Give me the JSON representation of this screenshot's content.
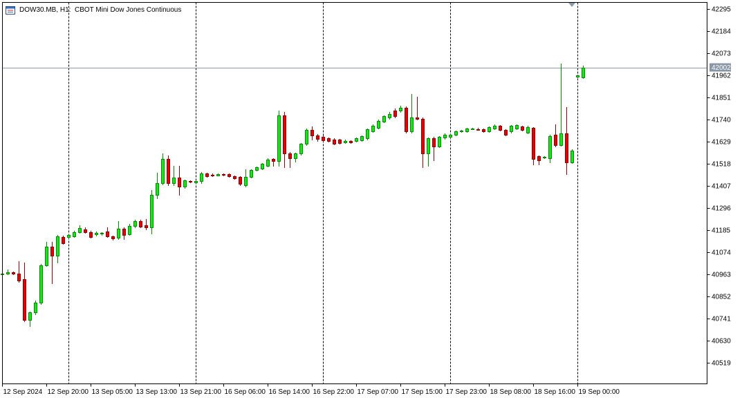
{
  "chart_data": {
    "type": "candlestick",
    "title": "DOW30.MB, H1:  CBOT Mini Dow Jones Continuous",
    "ylim": [
      40415,
      42330
    ],
    "grid": false,
    "legend": "none",
    "y_ticks": [
      42295,
      42184,
      42073,
      41962,
      41851,
      41740,
      41629,
      41518,
      41407,
      41296,
      41185,
      41074,
      40963,
      40852,
      40741,
      40630,
      40519
    ],
    "x_ticks": [
      {
        "label": "12 Sep 2024",
        "bar": 0
      },
      {
        "label": "12 Sep 20:00",
        "bar": 8
      },
      {
        "label": "13 Sep 05:00",
        "bar": 16
      },
      {
        "label": "13 Sep 13:00",
        "bar": 24
      },
      {
        "label": "13 Sep 21:00",
        "bar": 32
      },
      {
        "label": "16 Sep 06:00",
        "bar": 40
      },
      {
        "label": "16 Sep 14:00",
        "bar": 48
      },
      {
        "label": "16 Sep 22:00",
        "bar": 56
      },
      {
        "label": "17 Sep 07:00",
        "bar": 64
      },
      {
        "label": "17 Sep 15:00",
        "bar": 72
      },
      {
        "label": "17 Sep 23:00",
        "bar": 80
      },
      {
        "label": "18 Sep 08:00",
        "bar": 88
      },
      {
        "label": "18 Sep 16:00",
        "bar": 96
      },
      {
        "label": "19 Sep 00:00",
        "bar": 104
      }
    ],
    "day_separators_at_bar": [
      12,
      35,
      58,
      81,
      104
    ],
    "current_price": 42002,
    "candles": [
      {
        "o": 40963,
        "h": 40970,
        "l": 40959,
        "c": 40966
      },
      {
        "o": 40966,
        "h": 40987,
        "l": 40962,
        "c": 40973
      },
      {
        "o": 40973,
        "h": 40977,
        "l": 40962,
        "c": 40966
      },
      {
        "o": 40966,
        "h": 41029,
        "l": 40925,
        "c": 40932
      },
      {
        "o": 40939,
        "h": 41022,
        "l": 40727,
        "c": 40735
      },
      {
        "o": 40735,
        "h": 40776,
        "l": 40703,
        "c": 40772
      },
      {
        "o": 40772,
        "h": 40830,
        "l": 40762,
        "c": 40821
      },
      {
        "o": 40821,
        "h": 41015,
        "l": 40815,
        "c": 41008
      },
      {
        "o": 41008,
        "h": 41126,
        "l": 41004,
        "c": 41102
      },
      {
        "o": 41102,
        "h": 41126,
        "l": 40918,
        "c": 41057
      },
      {
        "o": 41057,
        "h": 41160,
        "l": 41022,
        "c": 41154
      },
      {
        "o": 41150,
        "h": 41157,
        "l": 41115,
        "c": 41119
      },
      {
        "o": 41150,
        "h": 41164,
        "l": 41145,
        "c": 41160
      },
      {
        "o": 41154,
        "h": 41182,
        "l": 41150,
        "c": 41175
      },
      {
        "o": 41175,
        "h": 41209,
        "l": 41172,
        "c": 41195
      },
      {
        "o": 41190,
        "h": 41198,
        "l": 41172,
        "c": 41176
      },
      {
        "o": 41176,
        "h": 41180,
        "l": 41146,
        "c": 41150
      },
      {
        "o": 41163,
        "h": 41178,
        "l": 41158,
        "c": 41171
      },
      {
        "o": 41168,
        "h": 41174,
        "l": 41162,
        "c": 41170
      },
      {
        "o": 41178,
        "h": 41200,
        "l": 41150,
        "c": 41154
      },
      {
        "o": 41154,
        "h": 41158,
        "l": 41136,
        "c": 41143
      },
      {
        "o": 41146,
        "h": 41230,
        "l": 41140,
        "c": 41192
      },
      {
        "o": 41192,
        "h": 41198,
        "l": 41140,
        "c": 41160
      },
      {
        "o": 41164,
        "h": 41216,
        "l": 41160,
        "c": 41206
      },
      {
        "o": 41206,
        "h": 41237,
        "l": 41200,
        "c": 41230
      },
      {
        "o": 41230,
        "h": 41236,
        "l": 41200,
        "c": 41204
      },
      {
        "o": 41210,
        "h": 41240,
        "l": 41188,
        "c": 41198
      },
      {
        "o": 41198,
        "h": 41386,
        "l": 41168,
        "c": 41362
      },
      {
        "o": 41362,
        "h": 41473,
        "l": 41345,
        "c": 41421
      },
      {
        "o": 41421,
        "h": 41570,
        "l": 41415,
        "c": 41542
      },
      {
        "o": 41542,
        "h": 41560,
        "l": 41410,
        "c": 41421
      },
      {
        "o": 41421,
        "h": 41507,
        "l": 41412,
        "c": 41450
      },
      {
        "o": 41450,
        "h": 41507,
        "l": 41362,
        "c": 41404
      },
      {
        "o": 41404,
        "h": 41440,
        "l": 41398,
        "c": 41435
      },
      {
        "o": 41430,
        "h": 41434,
        "l": 41424,
        "c": 41428
      },
      {
        "o": 41426,
        "h": 41432,
        "l": 41420,
        "c": 41430
      },
      {
        "o": 41430,
        "h": 41475,
        "l": 41422,
        "c": 41469
      },
      {
        "o": 41469,
        "h": 41473,
        "l": 41452,
        "c": 41456
      },
      {
        "o": 41464,
        "h": 41468,
        "l": 41456,
        "c": 41459
      },
      {
        "o": 41460,
        "h": 41468,
        "l": 41458,
        "c": 41466
      },
      {
        "o": 41466,
        "h": 41469,
        "l": 41459,
        "c": 41462
      },
      {
        "o": 41466,
        "h": 41469,
        "l": 41452,
        "c": 41456
      },
      {
        "o": 41456,
        "h": 41460,
        "l": 41442,
        "c": 41445
      },
      {
        "o": 41452,
        "h": 41455,
        "l": 41412,
        "c": 41418
      },
      {
        "o": 41412,
        "h": 41490,
        "l": 41405,
        "c": 41452
      },
      {
        "o": 41452,
        "h": 41490,
        "l": 41448,
        "c": 41487
      },
      {
        "o": 41487,
        "h": 41504,
        "l": 41484,
        "c": 41500
      },
      {
        "o": 41495,
        "h": 41522,
        "l": 41490,
        "c": 41518
      },
      {
        "o": 41508,
        "h": 41545,
        "l": 41505,
        "c": 41539
      },
      {
        "o": 41542,
        "h": 41546,
        "l": 41508,
        "c": 41532
      },
      {
        "o": 41532,
        "h": 41785,
        "l": 41508,
        "c": 41761
      },
      {
        "o": 41761,
        "h": 41778,
        "l": 41501,
        "c": 41570
      },
      {
        "o": 41570,
        "h": 41576,
        "l": 41500,
        "c": 41545
      },
      {
        "o": 41545,
        "h": 41575,
        "l": 41530,
        "c": 41570
      },
      {
        "o": 41570,
        "h": 41622,
        "l": 41565,
        "c": 41618
      },
      {
        "o": 41618,
        "h": 41695,
        "l": 41612,
        "c": 41688
      },
      {
        "o": 41688,
        "h": 41705,
        "l": 41640,
        "c": 41660
      },
      {
        "o": 41660,
        "h": 41666,
        "l": 41632,
        "c": 41642
      },
      {
        "o": 41655,
        "h": 41662,
        "l": 41630,
        "c": 41636
      },
      {
        "o": 41646,
        "h": 41650,
        "l": 41628,
        "c": 41632
      },
      {
        "o": 41640,
        "h": 41645,
        "l": 41616,
        "c": 41620
      },
      {
        "o": 41638,
        "h": 41642,
        "l": 41618,
        "c": 41622
      },
      {
        "o": 41626,
        "h": 41638,
        "l": 41622,
        "c": 41634
      },
      {
        "o": 41633,
        "h": 41637,
        "l": 41624,
        "c": 41627
      },
      {
        "o": 41632,
        "h": 41650,
        "l": 41628,
        "c": 41646
      },
      {
        "o": 41636,
        "h": 41660,
        "l": 41632,
        "c": 41656
      },
      {
        "o": 41646,
        "h": 41695,
        "l": 41640,
        "c": 41690
      },
      {
        "o": 41681,
        "h": 41715,
        "l": 41678,
        "c": 41709
      },
      {
        "o": 41698,
        "h": 41740,
        "l": 41695,
        "c": 41733
      },
      {
        "o": 41730,
        "h": 41762,
        "l": 41725,
        "c": 41757
      },
      {
        "o": 41750,
        "h": 41780,
        "l": 41745,
        "c": 41768
      },
      {
        "o": 41785,
        "h": 41795,
        "l": 41752,
        "c": 41757
      },
      {
        "o": 41785,
        "h": 41808,
        "l": 41778,
        "c": 41800
      },
      {
        "o": 41800,
        "h": 41805,
        "l": 41675,
        "c": 41681
      },
      {
        "o": 41681,
        "h": 41870,
        "l": 41675,
        "c": 41750
      },
      {
        "o": 41750,
        "h": 41855,
        "l": 41740,
        "c": 41745
      },
      {
        "o": 41745,
        "h": 41752,
        "l": 41500,
        "c": 41570
      },
      {
        "o": 41570,
        "h": 41650,
        "l": 41507,
        "c": 41646
      },
      {
        "o": 41646,
        "h": 41655,
        "l": 41535,
        "c": 41605
      },
      {
        "o": 41605,
        "h": 41658,
        "l": 41600,
        "c": 41653
      },
      {
        "o": 41650,
        "h": 41670,
        "l": 41642,
        "c": 41664
      },
      {
        "o": 41653,
        "h": 41668,
        "l": 41648,
        "c": 41663
      },
      {
        "o": 41664,
        "h": 41686,
        "l": 41660,
        "c": 41681
      },
      {
        "o": 41681,
        "h": 41688,
        "l": 41678,
        "c": 41684
      },
      {
        "o": 41681,
        "h": 41699,
        "l": 41678,
        "c": 41695
      },
      {
        "o": 41694,
        "h": 41700,
        "l": 41690,
        "c": 41696
      },
      {
        "o": 41693,
        "h": 41697,
        "l": 41688,
        "c": 41690
      },
      {
        "o": 41692,
        "h": 41696,
        "l": 41678,
        "c": 41682
      },
      {
        "o": 41682,
        "h": 41706,
        "l": 41678,
        "c": 41702
      },
      {
        "o": 41695,
        "h": 41716,
        "l": 41690,
        "c": 41709
      },
      {
        "o": 41709,
        "h": 41712,
        "l": 41684,
        "c": 41688
      },
      {
        "o": 41688,
        "h": 41692,
        "l": 41660,
        "c": 41664
      },
      {
        "o": 41681,
        "h": 41713,
        "l": 41676,
        "c": 41709
      },
      {
        "o": 41695,
        "h": 41716,
        "l": 41690,
        "c": 41712
      },
      {
        "o": 41705,
        "h": 41710,
        "l": 41684,
        "c": 41688
      },
      {
        "o": 41674,
        "h": 41708,
        "l": 41670,
        "c": 41702
      },
      {
        "o": 41698,
        "h": 41702,
        "l": 41514,
        "c": 41542
      },
      {
        "o": 41555,
        "h": 41560,
        "l": 41514,
        "c": 41535
      },
      {
        "o": 41549,
        "h": 41555,
        "l": 41545,
        "c": 41552
      },
      {
        "o": 41545,
        "h": 41664,
        "l": 41525,
        "c": 41657
      },
      {
        "o": 41664,
        "h": 41716,
        "l": 41605,
        "c": 41612
      },
      {
        "o": 41612,
        "h": 42021,
        "l": 41608,
        "c": 41670
      },
      {
        "o": 41670,
        "h": 41802,
        "l": 41466,
        "c": 41525
      },
      {
        "o": 41525,
        "h": 41590,
        "l": 41520,
        "c": 41584
      },
      {
        "o": 41955,
        "h": 41966,
        "l": 41952,
        "c": 41962
      },
      {
        "o": 41952,
        "h": 42010,
        "l": 41948,
        "c": 42002
      }
    ]
  },
  "colors": {
    "background": "#ffffff",
    "bull_fill": "#19e619",
    "bull_outline": "#008a00",
    "bear_fill": "#e60000",
    "bear_outline": "#8b0000",
    "separator": "#000000",
    "frame": "#000000",
    "price_line": "#8a9aaa",
    "price_tag_bg": "#8896a6",
    "shift_marker": "#8c9aa8"
  },
  "icons": {
    "title_icon": "chart-window-icon",
    "shift_marker": "chart-shift-marker-icon"
  }
}
